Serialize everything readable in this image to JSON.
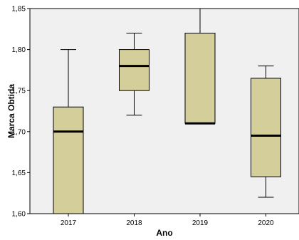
{
  "chart_data": {
    "type": "boxplot",
    "xlabel": "Ano",
    "ylabel": "Marca Obtida",
    "ylim": [
      1.6,
      1.85
    ],
    "yticks": [
      "1,60",
      "1,65",
      "1,70",
      "1,75",
      "1,80",
      "1,85"
    ],
    "ytick_values": [
      1.6,
      1.65,
      1.7,
      1.75,
      1.8,
      1.85
    ],
    "categories": [
      "2017",
      "2018",
      "2019",
      "2020"
    ],
    "boxes": [
      {
        "category": "2017",
        "whisker_low": 1.6,
        "q1": 1.6,
        "median": 1.7,
        "q3": 1.73,
        "whisker_high": 1.8
      },
      {
        "category": "2018",
        "whisker_low": 1.72,
        "q1": 1.75,
        "median": 1.78,
        "q3": 1.8,
        "whisker_high": 1.82
      },
      {
        "category": "2019",
        "whisker_low": 1.71,
        "q1": 1.71,
        "median": 1.71,
        "q3": 1.82,
        "whisker_high": 1.85
      },
      {
        "category": "2020",
        "whisker_low": 1.62,
        "q1": 1.645,
        "median": 1.695,
        "q3": 1.765,
        "whisker_high": 1.78
      }
    ],
    "colors": {
      "plot_bg": "#f0f0f0",
      "box_fill": "#d4ce9a",
      "stroke": "#000000"
    },
    "grid": false
  }
}
